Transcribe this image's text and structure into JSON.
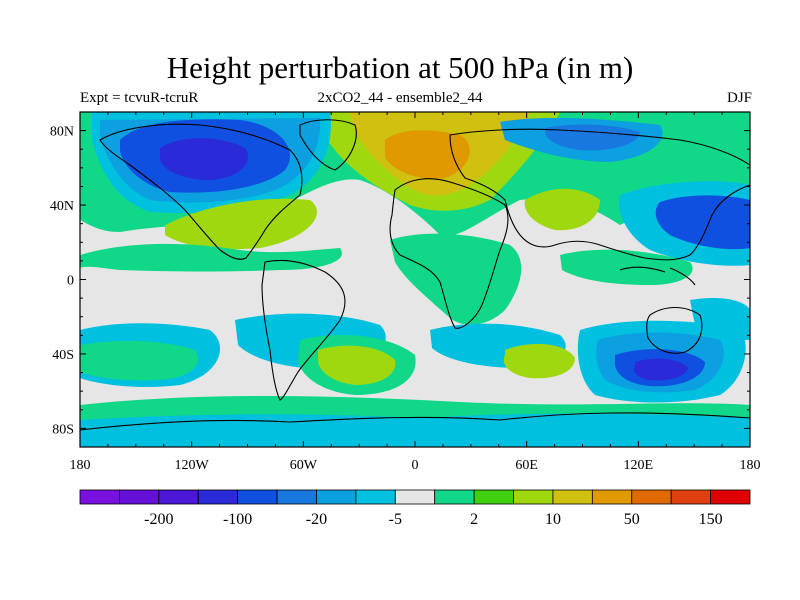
{
  "map": {
    "title": "Height perturbation at 500 hPa (in m)",
    "subtitle_left": "Expt = tcvuR-tcruR",
    "subtitle_center": "2xCO2_44 - ensemble2_44",
    "subtitle_right": "DJF",
    "lat_labels": [
      {
        "lat": 80,
        "text": "80N"
      },
      {
        "lat": 40,
        "text": "40N"
      },
      {
        "lat": 0,
        "text": "0"
      },
      {
        "lat": -40,
        "text": "40S"
      },
      {
        "lat": -80,
        "text": "80S"
      }
    ],
    "lon_labels": [
      {
        "lon": -180,
        "text": "180"
      },
      {
        "lon": -120,
        "text": "120W"
      },
      {
        "lon": -60,
        "text": "60W"
      },
      {
        "lon": 0,
        "text": "0"
      },
      {
        "lon": 60,
        "text": "60E"
      },
      {
        "lon": 120,
        "text": "120E"
      },
      {
        "lon": 180,
        "text": "180"
      }
    ],
    "colorbar": {
      "colors": [
        "#7a10e0",
        "#6410d8",
        "#4a18d6",
        "#2a2ad8",
        "#1050e0",
        "#1878e0",
        "#0ca0e0",
        "#00c0e0",
        "#e6e6e6",
        "#10d888",
        "#40d010",
        "#a0d810",
        "#d0c010",
        "#e09a00",
        "#e06a00",
        "#e04010",
        "#e00000"
      ],
      "labels": [
        {
          "after_index": 1,
          "text": "-200"
        },
        {
          "after_index": 3,
          "text": "-100"
        },
        {
          "after_index": 5,
          "text": "-20"
        },
        {
          "after_index": 7,
          "text": "-5"
        },
        {
          "after_index": 9,
          "text": "2"
        },
        {
          "after_index": 11,
          "text": "10"
        },
        {
          "after_index": 13,
          "text": "50"
        },
        {
          "after_index": 15,
          "text": "150"
        }
      ]
    },
    "field_colors": {
      "background": "#e6e6e6",
      "green": "#10d888",
      "cyan": "#00c0e0",
      "light_blue": "#0ca0e0",
      "mid_blue": "#1878e0",
      "blue": "#1050e0",
      "dark_blue": "#2a2ad8",
      "bright_green": "#40d010",
      "yellow_green": "#a0d810",
      "yellow": "#d0c010",
      "orange": "#e09a00"
    }
  }
}
